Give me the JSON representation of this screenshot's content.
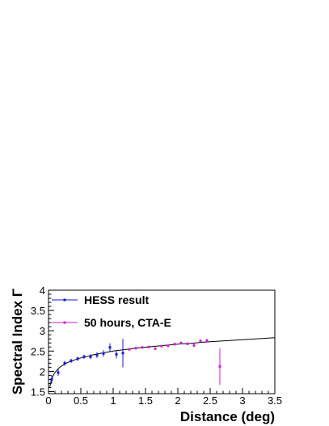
{
  "chart_data": {
    "type": "scatter",
    "title": "",
    "xlabel": "Distance (deg)",
    "ylabel": "Spectral Index Γ",
    "xlim": [
      0,
      3.5
    ],
    "ylim": [
      1.45,
      4.0
    ],
    "x_ticks": [
      0,
      0.5,
      1,
      1.5,
      2,
      2.5,
      3,
      3.5
    ],
    "x_tick_labels": [
      "0",
      "0.5",
      "1",
      "1.5",
      "2",
      "2.5",
      "3",
      "3.5"
    ],
    "y_ticks": [
      1.5,
      2,
      2.5,
      3,
      3.5,
      4
    ],
    "y_tick_labels": [
      "1.5",
      "2",
      "2.5",
      "3",
      "3.5",
      "4"
    ],
    "grid": false,
    "legend_position": "top-left",
    "colors": {
      "hess": "#1a1acc",
      "cta": "#cc22cc",
      "fit": "#000000"
    },
    "fit_curve": {
      "name": "",
      "x": [
        0.02,
        0.04,
        0.06,
        0.08,
        0.1,
        0.13,
        0.16,
        0.2,
        0.25,
        0.3,
        0.4,
        0.5,
        0.6,
        0.7,
        0.8,
        0.9,
        1.0,
        1.2,
        1.4,
        1.6,
        1.8,
        2.0,
        2.2,
        2.4,
        2.6,
        2.8,
        3.0,
        3.2,
        3.5
      ],
      "y": [
        1.62,
        1.76,
        1.85,
        1.92,
        1.97,
        2.03,
        2.08,
        2.13,
        2.18,
        2.22,
        2.28,
        2.33,
        2.37,
        2.41,
        2.44,
        2.47,
        2.5,
        2.54,
        2.58,
        2.61,
        2.64,
        2.67,
        2.69,
        2.72,
        2.74,
        2.76,
        2.78,
        2.8,
        2.83
      ]
    },
    "series": [
      {
        "name": "HESS result",
        "color": "#1a1acc",
        "x": [
          0.05,
          0.15,
          0.25,
          0.35,
          0.45,
          0.55,
          0.65,
          0.75,
          0.85,
          0.95,
          1.05,
          1.15
        ],
        "y": [
          1.8,
          1.97,
          2.2,
          2.26,
          2.31,
          2.36,
          2.36,
          2.4,
          2.44,
          2.59,
          2.42,
          2.45
        ],
        "y_err": [
          0.1,
          0.08,
          0.06,
          0.05,
          0.05,
          0.05,
          0.06,
          0.07,
          0.08,
          0.1,
          0.1,
          0.35
        ]
      },
      {
        "name": "50 hours, CTA-E",
        "color": "#cc22cc",
        "x": [
          1.25,
          1.35,
          1.45,
          1.55,
          1.65,
          1.75,
          1.85,
          1.95,
          2.05,
          2.15,
          2.25,
          2.35,
          2.45,
          2.65
        ],
        "y": [
          2.54,
          2.57,
          2.59,
          2.6,
          2.56,
          2.62,
          2.63,
          2.67,
          2.7,
          2.68,
          2.64,
          2.75,
          2.76,
          2.12
        ],
        "y_err": [
          0.02,
          0.02,
          0.02,
          0.02,
          0.02,
          0.02,
          0.02,
          0.03,
          0.03,
          0.03,
          0.04,
          0.04,
          0.04,
          0.45
        ]
      }
    ]
  }
}
